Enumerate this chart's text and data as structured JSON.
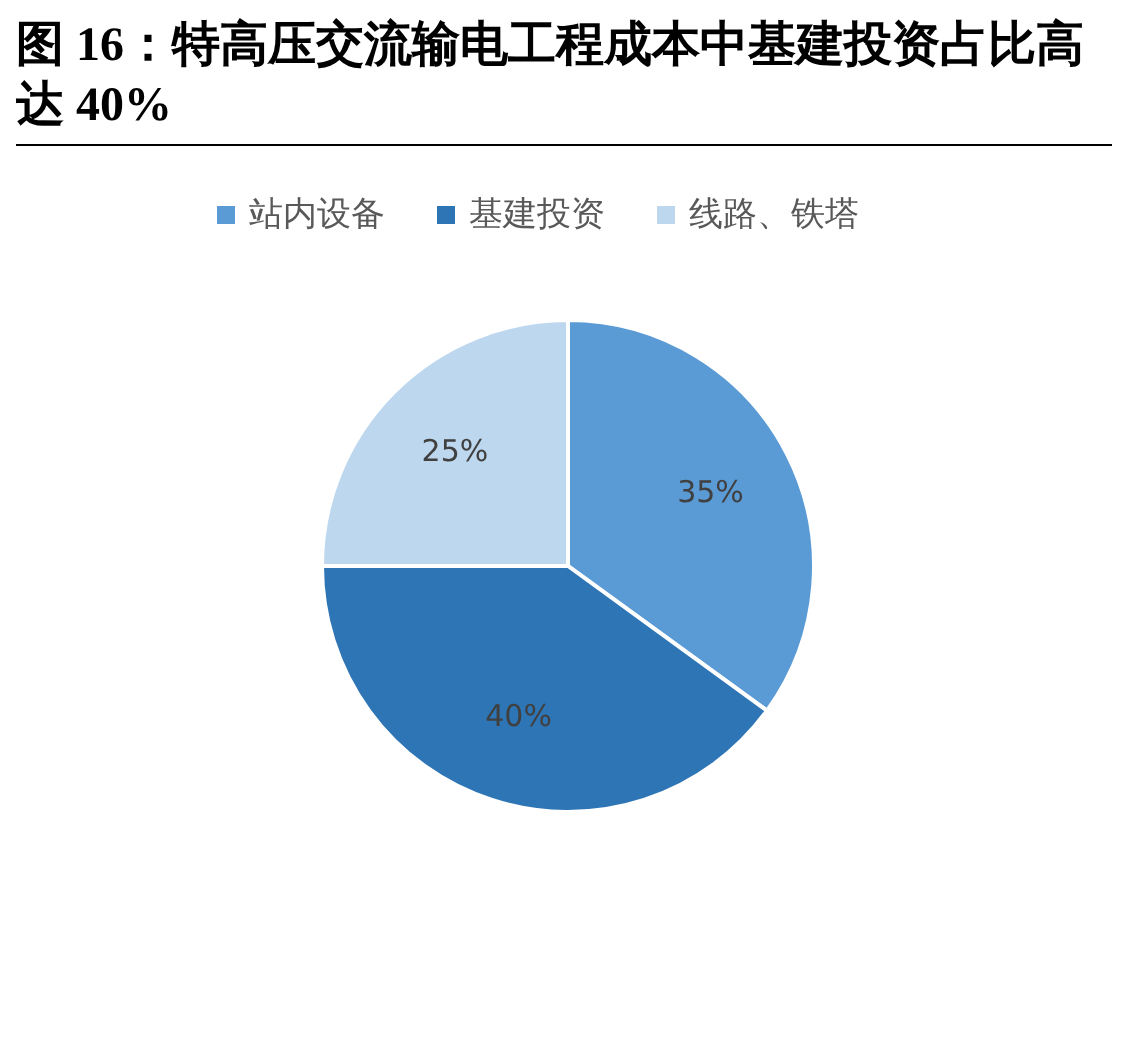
{
  "chart_data": {
    "type": "pie",
    "title": "图 16：特高压交流输电工程成本中基建投资占比高达 40%",
    "categories": [
      "站内设备",
      "基建投资",
      "线路、铁塔"
    ],
    "values": [
      35,
      40,
      25
    ],
    "colors": [
      "#5b9bd5",
      "#2e75b6",
      "#bdd7ee"
    ],
    "value_labels": [
      "35%",
      "40%",
      "25%"
    ],
    "legend": "top"
  }
}
